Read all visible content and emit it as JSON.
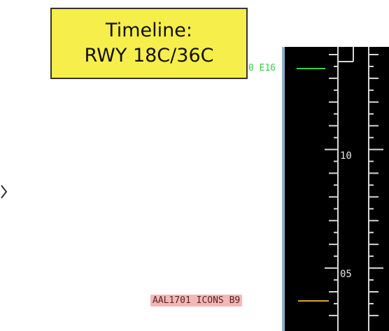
{
  "callout": {
    "line1": "Timeline:",
    "line2": "RWY 18C/36C"
  },
  "flights": {
    "top_tag": "0 E16",
    "bottom_tag": "AAL1701 ICONS B9"
  },
  "ticks": {
    "upper": "10",
    "lower": "05"
  },
  "colors": {
    "screen": "#000000",
    "callout_bg": "#f6ee4a",
    "green_tag": "#35d04a",
    "pink_tag_bg": "#f3b7b7",
    "leader_orange": "#e0a33a",
    "scale_line": "#d8d8d8"
  }
}
